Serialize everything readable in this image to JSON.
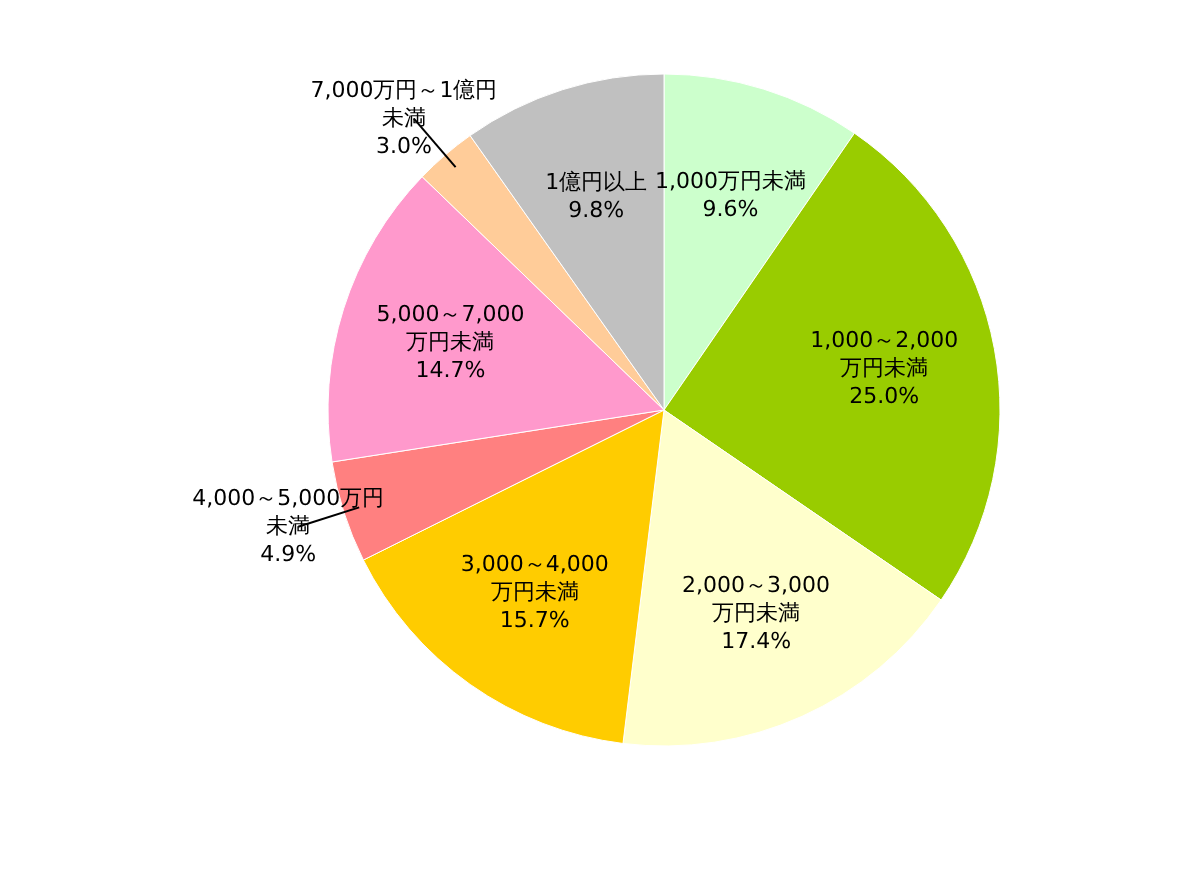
{
  "chart_data": {
    "type": "pie",
    "categories": [
      "1,000万円未満",
      "1,000～2,000万円未満",
      "2,000～3,000万円未満",
      "3,000～4,000万円未満",
      "4,000～5,000万円未満",
      "5,000～7,000万円未満",
      "7,000万円～1億円未満",
      "1億円以上"
    ],
    "values": [
      9.6,
      25.0,
      17.4,
      15.7,
      4.9,
      14.7,
      3.0,
      9.8
    ],
    "value_labels": [
      "9.6%",
      "25.0%",
      "17.4%",
      "15.7%",
      "4.9%",
      "14.7%",
      "3.0%",
      "9.8%"
    ],
    "colors": [
      "#ccffcc",
      "#99cc00",
      "#ffffcc",
      "#ffcc00",
      "#ff8080",
      "#ff99cc",
      "#ffcc99",
      "#c0c0c0"
    ]
  }
}
